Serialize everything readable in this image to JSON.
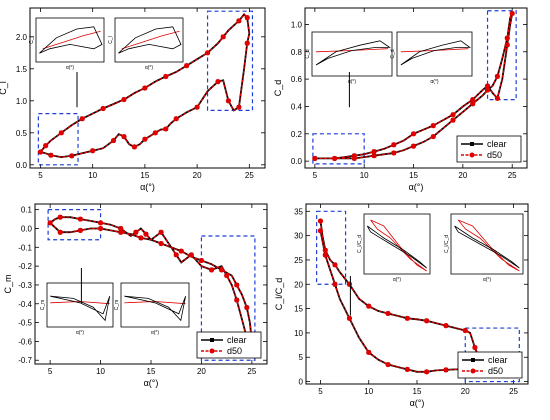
{
  "figure": {
    "colors": {
      "clear": "#000000",
      "d50": "#e00000",
      "box": "#1f3fd8"
    },
    "legend": {
      "series": [
        "clear",
        "d50"
      ]
    }
  },
  "chart_data": [
    {
      "type": "line",
      "ylabel": "C_l",
      "xlabel": "α(°)",
      "xlim": [
        4,
        26.5
      ],
      "ylim": [
        -0.05,
        2.45
      ],
      "x_ticks": [
        "5",
        "10",
        "15",
        "20",
        "25"
      ],
      "y_ticks": [
        "0.0",
        "0.5",
        "1.0",
        "1.5",
        "2.0"
      ],
      "legend": false,
      "series": [
        {
          "name": "clear",
          "x": [
            5,
            5.5,
            6,
            7,
            8,
            9,
            10,
            11,
            12,
            12.5,
            13,
            13.5,
            14,
            14.5,
            15,
            15.5,
            16,
            16.5,
            17,
            17.5,
            18,
            19,
            20,
            21,
            22,
            22.5,
            23,
            23.5,
            24,
            24.5,
            24.8,
            25,
            24.8,
            24.5,
            24,
            23,
            22.5,
            22,
            21,
            20,
            19,
            18,
            17,
            16,
            15,
            14,
            13,
            12,
            11,
            10,
            9,
            8,
            7,
            6,
            5.5,
            5
          ],
          "y": [
            0.2,
            0.18,
            0.15,
            0.12,
            0.14,
            0.18,
            0.22,
            0.26,
            0.38,
            0.48,
            0.44,
            0.32,
            0.28,
            0.32,
            0.4,
            0.45,
            0.5,
            0.55,
            0.56,
            0.65,
            0.72,
            0.82,
            0.9,
            1.15,
            1.3,
            1.32,
            1.0,
            0.85,
            0.9,
            1.5,
            1.9,
            2.05,
            2.3,
            2.35,
            2.25,
            2.1,
            2.0,
            1.9,
            1.75,
            1.65,
            1.55,
            1.45,
            1.38,
            1.3,
            1.2,
            1.12,
            1.02,
            0.95,
            0.88,
            0.8,
            0.72,
            0.62,
            0.5,
            0.38,
            0.3,
            0.2
          ]
        },
        {
          "name": "d50",
          "x": [
            5,
            5.5,
            6,
            7,
            8,
            9,
            10,
            11,
            12,
            12.5,
            13,
            13.5,
            14,
            14.5,
            15,
            15.5,
            16,
            16.5,
            17,
            17.5,
            18,
            19,
            20,
            21,
            22,
            22.5,
            23,
            23.5,
            24,
            24.5,
            24.8,
            25,
            24.8,
            24.5,
            24,
            23,
            22.5,
            22,
            21,
            20,
            19,
            18,
            17,
            16,
            15,
            14,
            13,
            12,
            11,
            10,
            9,
            8,
            7,
            6,
            5.5,
            5
          ],
          "y": [
            0.2,
            0.18,
            0.15,
            0.12,
            0.14,
            0.18,
            0.22,
            0.26,
            0.38,
            0.48,
            0.44,
            0.32,
            0.28,
            0.32,
            0.4,
            0.45,
            0.5,
            0.55,
            0.56,
            0.65,
            0.72,
            0.82,
            0.9,
            1.15,
            1.3,
            1.32,
            1.0,
            0.85,
            0.9,
            1.5,
            1.9,
            2.05,
            2.3,
            2.35,
            2.25,
            2.1,
            2.0,
            1.9,
            1.75,
            1.65,
            1.55,
            1.45,
            1.38,
            1.3,
            1.2,
            1.12,
            1.02,
            0.95,
            0.88,
            0.8,
            0.72,
            0.62,
            0.5,
            0.38,
            0.3,
            0.2
          ]
        }
      ],
      "highlight_regions": [
        {
          "x": [
            4.8,
            8.6
          ],
          "y": [
            0.0,
            0.8
          ]
        },
        {
          "x": [
            21.0,
            25.3
          ],
          "y": [
            0.85,
            2.4
          ]
        }
      ],
      "insets": [
        {
          "ylabel": "C_l",
          "xlabel": "α(°)",
          "series": [
            "clear",
            "d50"
          ]
        },
        {
          "ylabel": "C_l",
          "xlabel": "α(°)",
          "series": [
            "clear",
            "d50"
          ]
        }
      ]
    },
    {
      "type": "line",
      "ylabel": "C_d",
      "xlabel": "α(°)",
      "xlim": [
        4,
        26.5
      ],
      "ylim": [
        -0.05,
        1.12
      ],
      "x_ticks": [
        "5",
        "10",
        "15",
        "20",
        "25"
      ],
      "y_ticks": [
        "0.0",
        "0.2",
        "0.4",
        "0.6",
        "0.8",
        "1.0"
      ],
      "legend": true,
      "series": [
        {
          "name": "clear",
          "x": [
            5,
            6,
            7,
            8,
            9,
            10,
            11,
            12,
            13,
            14,
            15,
            16,
            17,
            18,
            19,
            20,
            21,
            22,
            22.5,
            23,
            23.5,
            24,
            24.5,
            24.8,
            25,
            24.8,
            24.5,
            24,
            23.5,
            23,
            22.5,
            22,
            21,
            20,
            19,
            18,
            17,
            16,
            15,
            14,
            13,
            12,
            11,
            10,
            9,
            8,
            7,
            6,
            5
          ],
          "y": [
            0.02,
            0.02,
            0.02,
            0.03,
            0.04,
            0.05,
            0.07,
            0.09,
            0.12,
            0.15,
            0.2,
            0.23,
            0.26,
            0.3,
            0.34,
            0.4,
            0.45,
            0.52,
            0.55,
            0.5,
            0.46,
            0.6,
            0.85,
            1.0,
            1.08,
            1.05,
            0.9,
            0.75,
            0.62,
            0.55,
            0.52,
            0.48,
            0.42,
            0.36,
            0.3,
            0.24,
            0.18,
            0.14,
            0.11,
            0.08,
            0.06,
            0.05,
            0.04,
            0.03,
            0.02,
            0.02,
            0.02,
            0.02,
            0.02
          ]
        },
        {
          "name": "d50",
          "x": [
            5,
            6,
            7,
            8,
            9,
            10,
            11,
            12,
            13,
            14,
            15,
            16,
            17,
            18,
            19,
            20,
            21,
            22,
            22.5,
            23,
            23.5,
            24,
            24.5,
            24.8,
            25,
            24.8,
            24.5,
            24,
            23.5,
            23,
            22.5,
            22,
            21,
            20,
            19,
            18,
            17,
            16,
            15,
            14,
            13,
            12,
            11,
            10,
            9,
            8,
            7,
            6,
            5
          ],
          "y": [
            0.02,
            0.02,
            0.02,
            0.03,
            0.04,
            0.05,
            0.07,
            0.09,
            0.12,
            0.15,
            0.2,
            0.23,
            0.26,
            0.3,
            0.34,
            0.4,
            0.45,
            0.52,
            0.55,
            0.5,
            0.46,
            0.6,
            0.85,
            1.0,
            1.08,
            1.05,
            0.9,
            0.75,
            0.62,
            0.55,
            0.52,
            0.48,
            0.42,
            0.36,
            0.3,
            0.24,
            0.18,
            0.14,
            0.11,
            0.08,
            0.06,
            0.05,
            0.04,
            0.03,
            0.02,
            0.02,
            0.02,
            0.02,
            0.02
          ]
        }
      ],
      "highlight_regions": [
        {
          "x": [
            4.8,
            10.0
          ],
          "y": [
            -0.02,
            0.2
          ]
        },
        {
          "x": [
            22.5,
            25.4
          ],
          "y": [
            0.45,
            1.1
          ]
        }
      ],
      "insets": [
        {
          "ylabel": "C_d",
          "xlabel": "α(°)",
          "series": [
            "clear",
            "d50"
          ]
        },
        {
          "ylabel": "C_d",
          "xlabel": "α(°)",
          "series": [
            "clear",
            "d50"
          ]
        }
      ]
    },
    {
      "type": "line",
      "ylabel": "C_m",
      "xlabel": "α(°)",
      "xlim": [
        3.5,
        26.5
      ],
      "ylim": [
        -0.72,
        0.13
      ],
      "x_ticks": [
        "5",
        "10",
        "15",
        "20",
        "25"
      ],
      "y_ticks": [
        "0.1",
        "0.0",
        "-0.1",
        "-0.2",
        "-0.3",
        "-0.4",
        "-0.5",
        "-0.6",
        "-0.7"
      ],
      "legend": true,
      "series": [
        {
          "name": "clear",
          "x": [
            5,
            5.5,
            6,
            7,
            8,
            9,
            10,
            11,
            12,
            13,
            13.5,
            14,
            14.5,
            15,
            16,
            17,
            17.5,
            18,
            19,
            20,
            21,
            22,
            22.5,
            23,
            23.5,
            24,
            24.5,
            24.8,
            25,
            24.8,
            24.5,
            24,
            23.5,
            23,
            22,
            21,
            20,
            19,
            18,
            17,
            16,
            15,
            14,
            13,
            12,
            11,
            10,
            9,
            8,
            7,
            6,
            5
          ],
          "y": [
            0.03,
            0.05,
            0.06,
            0.06,
            0.05,
            0.04,
            0.03,
            0.02,
            0.0,
            -0.04,
            -0.02,
            0.0,
            -0.03,
            -0.06,
            -0.02,
            -0.1,
            -0.14,
            -0.18,
            -0.14,
            -0.2,
            -0.22,
            -0.2,
            -0.25,
            -0.3,
            -0.38,
            -0.48,
            -0.58,
            -0.66,
            -0.6,
            -0.5,
            -0.42,
            -0.35,
            -0.3,
            -0.25,
            -0.22,
            -0.19,
            -0.17,
            -0.15,
            -0.12,
            -0.1,
            -0.08,
            -0.06,
            -0.05,
            -0.03,
            -0.02,
            -0.01,
            0.0,
            0.0,
            -0.01,
            -0.02,
            -0.02,
            0.03
          ]
        },
        {
          "name": "d50",
          "x": [
            5,
            5.5,
            6,
            7,
            8,
            9,
            10,
            11,
            12,
            13,
            13.5,
            14,
            14.5,
            15,
            16,
            17,
            17.5,
            18,
            19,
            20,
            21,
            22,
            22.5,
            23,
            23.5,
            24,
            24.5,
            24.8,
            25,
            24.8,
            24.5,
            24,
            23.5,
            23,
            22,
            21,
            20,
            19,
            18,
            17,
            16,
            15,
            14,
            13,
            12,
            11,
            10,
            9,
            8,
            7,
            6,
            5
          ],
          "y": [
            0.03,
            0.05,
            0.06,
            0.06,
            0.05,
            0.04,
            0.03,
            0.02,
            0.0,
            -0.04,
            -0.02,
            0.0,
            -0.03,
            -0.06,
            -0.02,
            -0.1,
            -0.14,
            -0.18,
            -0.14,
            -0.2,
            -0.22,
            -0.2,
            -0.25,
            -0.3,
            -0.38,
            -0.48,
            -0.58,
            -0.66,
            -0.6,
            -0.5,
            -0.42,
            -0.35,
            -0.3,
            -0.25,
            -0.22,
            -0.19,
            -0.17,
            -0.15,
            -0.12,
            -0.1,
            -0.08,
            -0.06,
            -0.05,
            -0.03,
            -0.02,
            -0.01,
            0.0,
            0.0,
            -0.01,
            -0.02,
            -0.02,
            0.03
          ]
        }
      ],
      "highlight_regions": [
        {
          "x": [
            4.8,
            10.0
          ],
          "y": [
            -0.06,
            0.1
          ]
        },
        {
          "x": [
            20.0,
            25.3
          ],
          "y": [
            -0.7,
            -0.04
          ]
        }
      ],
      "insets": [
        {
          "ylabel": "C_m",
          "xlabel": "α(°)",
          "series": [
            "clear",
            "d50"
          ]
        },
        {
          "ylabel": "C_m",
          "xlabel": "α(°)",
          "series": [
            "clear",
            "d50"
          ]
        }
      ]
    },
    {
      "type": "line",
      "ylabel": "C_l/C_d",
      "xlabel": "α(°)",
      "xlim": [
        3.5,
        26.5
      ],
      "ylim": [
        -0.5,
        36.5
      ],
      "x_ticks": [
        "5",
        "10",
        "15",
        "20",
        "25"
      ],
      "y_ticks": [
        "0",
        "5",
        "10",
        "15",
        "20",
        "25",
        "30",
        "35"
      ],
      "legend": true,
      "series": [
        {
          "name": "clear",
          "x": [
            5,
            5.2,
            5.5,
            6,
            6.5,
            7,
            8,
            9,
            10,
            11,
            12,
            13,
            14,
            15,
            16,
            17,
            18,
            19,
            20,
            20.5,
            21,
            21.5,
            22,
            23,
            24,
            25,
            24,
            23,
            22,
            21,
            20,
            19,
            18,
            17,
            16,
            15,
            14,
            13,
            12,
            11,
            10,
            9,
            8,
            7,
            6.5,
            6,
            5.5,
            5.2,
            5
          ],
          "y": [
            33,
            30,
            27,
            25,
            24,
            22.5,
            20,
            17,
            15.5,
            14.5,
            14,
            13.5,
            13,
            12.8,
            12.5,
            12,
            11.5,
            11,
            10.5,
            10,
            7,
            4.5,
            3.5,
            3,
            2.5,
            2,
            2,
            2,
            2.2,
            2.5,
            2.5,
            2.5,
            2.4,
            2.3,
            2,
            2,
            2.5,
            3,
            3.5,
            4.5,
            6,
            9,
            13,
            17,
            20,
            23,
            26,
            29,
            31
          ]
        },
        {
          "name": "d50",
          "x": [
            5,
            5.2,
            5.5,
            6,
            6.5,
            7,
            8,
            9,
            10,
            11,
            12,
            13,
            14,
            15,
            16,
            17,
            18,
            19,
            20,
            20.5,
            21,
            21.5,
            22,
            23,
            24,
            25,
            24,
            23,
            22,
            21,
            20,
            19,
            18,
            17,
            16,
            15,
            14,
            13,
            12,
            11,
            10,
            9,
            8,
            7,
            6.5,
            6,
            5.5,
            5.2,
            5
          ],
          "y": [
            33,
            30,
            27,
            25,
            24,
            22.5,
            20,
            17,
            15.5,
            14.5,
            14,
            13.5,
            13,
            12.8,
            12.5,
            12,
            11.5,
            11,
            10.5,
            10,
            7,
            4.5,
            3.5,
            3,
            2.5,
            2,
            2,
            2,
            2.2,
            2.5,
            2.5,
            2.5,
            2.4,
            2.3,
            2,
            2,
            2.5,
            3,
            3.5,
            4.5,
            6,
            9,
            13,
            17,
            20,
            23,
            26,
            29,
            31
          ]
        }
      ],
      "highlight_regions": [
        {
          "x": [
            4.6,
            7.6
          ],
          "y": [
            20.0,
            35.0
          ]
        },
        {
          "x": [
            20.0,
            25.6
          ],
          "y": [
            0.0,
            11.0
          ]
        }
      ],
      "insets": [
        {
          "ylabel": "C_l/C_d",
          "xlabel": "α(°)",
          "series": [
            "clear",
            "d50"
          ]
        },
        {
          "ylabel": "C_l/C_d",
          "xlabel": "α(°)",
          "series": [
            "clear",
            "d50"
          ]
        }
      ]
    }
  ]
}
